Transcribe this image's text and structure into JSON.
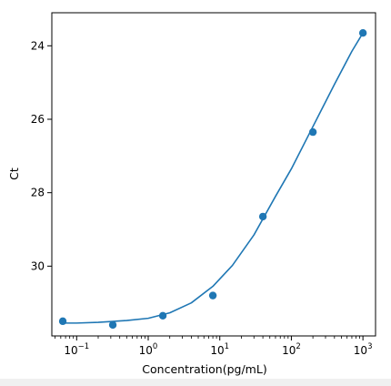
{
  "chart_data": {
    "type": "scatter",
    "title": "",
    "xlabel": "Concentration(pg/mL)",
    "ylabel": "Ct",
    "x_scale": "log",
    "xlim": [
      0.045,
      1500
    ],
    "x_ticks": [
      {
        "value": 0.1,
        "base": "10",
        "exp": "−1"
      },
      {
        "value": 1,
        "base": "10",
        "exp": "0"
      },
      {
        "value": 10,
        "base": "10",
        "exp": "1"
      },
      {
        "value": 100,
        "base": "10",
        "exp": "2"
      },
      {
        "value": 1000,
        "base": "10",
        "exp": "3"
      }
    ],
    "y_inverted": true,
    "ylim": [
      23.1,
      31.9
    ],
    "y_ticks": [
      "24",
      "26",
      "28",
      "30"
    ],
    "grid": false,
    "legend": "none",
    "colors": {
      "series": "#1f77b4",
      "axis": "#000000"
    },
    "series": [
      {
        "kind": "points",
        "x": [
          0.064,
          0.32,
          1.6,
          8,
          40,
          200,
          1000
        ],
        "y": [
          31.5,
          31.6,
          31.35,
          30.8,
          28.65,
          26.35,
          23.65
        ]
      },
      {
        "kind": "fit-curve",
        "x": [
          0.064,
          0.1,
          0.2,
          0.5,
          1,
          2,
          4,
          8,
          15,
          30,
          60,
          100,
          200,
          400,
          700,
          1000
        ],
        "y": [
          31.55,
          31.55,
          31.53,
          31.48,
          31.42,
          31.27,
          31.0,
          30.55,
          29.98,
          29.15,
          28.1,
          27.35,
          26.2,
          25.05,
          24.15,
          23.65
        ]
      }
    ]
  }
}
